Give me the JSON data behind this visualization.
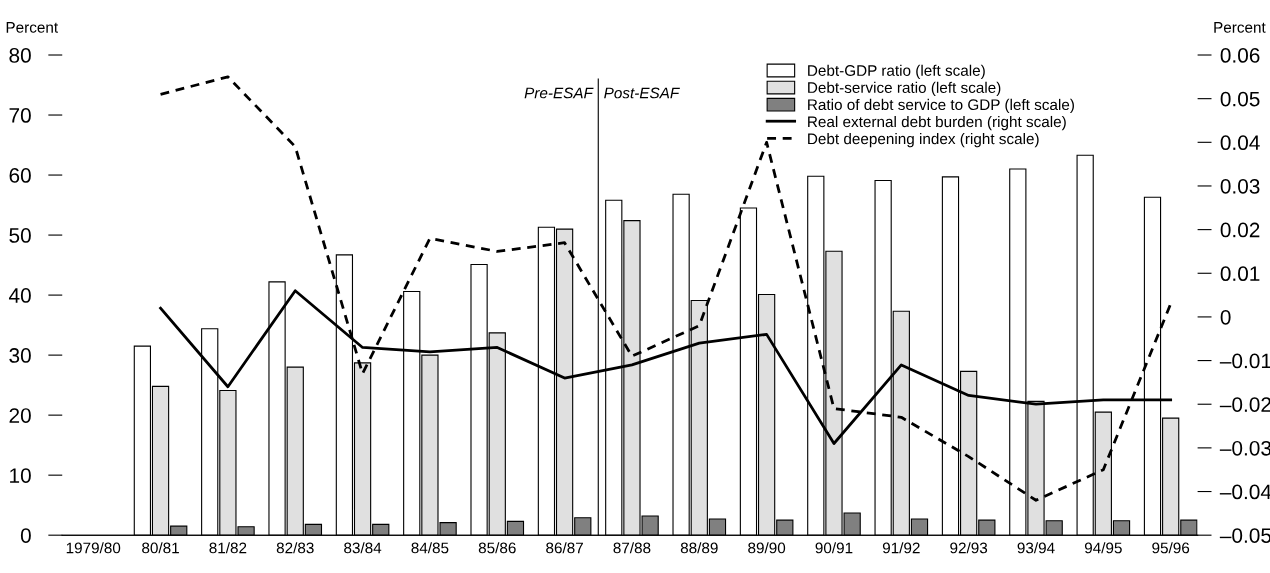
{
  "chart_data": {
    "type": "bar",
    "ylabel": "Percent",
    "y2label": "Percent",
    "categories": [
      "1979/80",
      "80/81",
      "81/82",
      "82/83",
      "83/84",
      "84/85",
      "85/86",
      "86/87",
      "87/88",
      "88/89",
      "89/90",
      "90/91",
      "91/92",
      "92/93",
      "93/94",
      "94/95",
      "95/96"
    ],
    "series": [
      {
        "name": "Debt-GDP ratio (left scale)",
        "color": "#ffffff",
        "values": [
          null,
          31.5,
          34.4,
          42.2,
          46.7,
          40.6,
          45.1,
          51.3,
          55.8,
          56.8,
          54.5,
          59.8,
          59.1,
          59.7,
          61.0,
          63.3,
          56.3
        ]
      },
      {
        "name": "Debt-service ratio (left scale)",
        "color": "#e0e0e0",
        "values": [
          null,
          24.8,
          24.1,
          28.0,
          28.7,
          30.0,
          33.7,
          51.0,
          52.4,
          39.1,
          40.1,
          47.3,
          37.3,
          27.3,
          22.3,
          20.5,
          19.5
        ]
      },
      {
        "name": "Ratio of debt service to GDP (left scale)",
        "color": "#808080",
        "values": [
          null,
          1.5,
          1.4,
          1.8,
          1.8,
          2.1,
          2.3,
          2.9,
          3.2,
          2.7,
          2.5,
          3.7,
          2.7,
          2.5,
          2.4,
          2.4,
          2.5
        ]
      },
      {
        "name": "Real external debt burden (right scale)",
        "type": "line",
        "axis": "y2",
        "line_style": "solid",
        "color": "#000000",
        "values": [
          null,
          0.002,
          -0.016,
          0.006,
          -0.007,
          -0.008,
          -0.007,
          -0.014,
          -0.011,
          -0.006,
          -0.004,
          -0.029,
          -0.011,
          -0.018,
          -0.02,
          -0.019,
          -0.019
        ]
      },
      {
        "name": "Debt deepening index (right scale)",
        "type": "line",
        "axis": "y2",
        "line_style": "dashed",
        "color": "#000000",
        "values": [
          null,
          0.051,
          0.055,
          0.039,
          -0.013,
          0.018,
          0.015,
          0.017,
          -0.009,
          -0.002,
          0.04,
          -0.021,
          -0.023,
          -0.032,
          -0.042,
          -0.035,
          0.003
        ]
      }
    ],
    "ylim": [
      0,
      80
    ],
    "yticks": [
      0,
      10,
      20,
      30,
      40,
      50,
      60,
      70,
      80
    ],
    "y2lim": [
      -0.05,
      0.06
    ],
    "y2ticks": [
      {
        "value": -0.05,
        "label": "–0.05"
      },
      {
        "value": -0.04,
        "label": "–0.04"
      },
      {
        "value": -0.03,
        "label": "–0.03"
      },
      {
        "value": -0.02,
        "label": "–0.02"
      },
      {
        "value": -0.01,
        "label": "–0.01"
      },
      0,
      0.01,
      0.02,
      0.03,
      0.04,
      0.05,
      0.06
    ],
    "annotations": [
      "Pre-ESAF",
      "Post-ESAF"
    ],
    "legend": "top right",
    "grid": false,
    "marker": "none"
  }
}
